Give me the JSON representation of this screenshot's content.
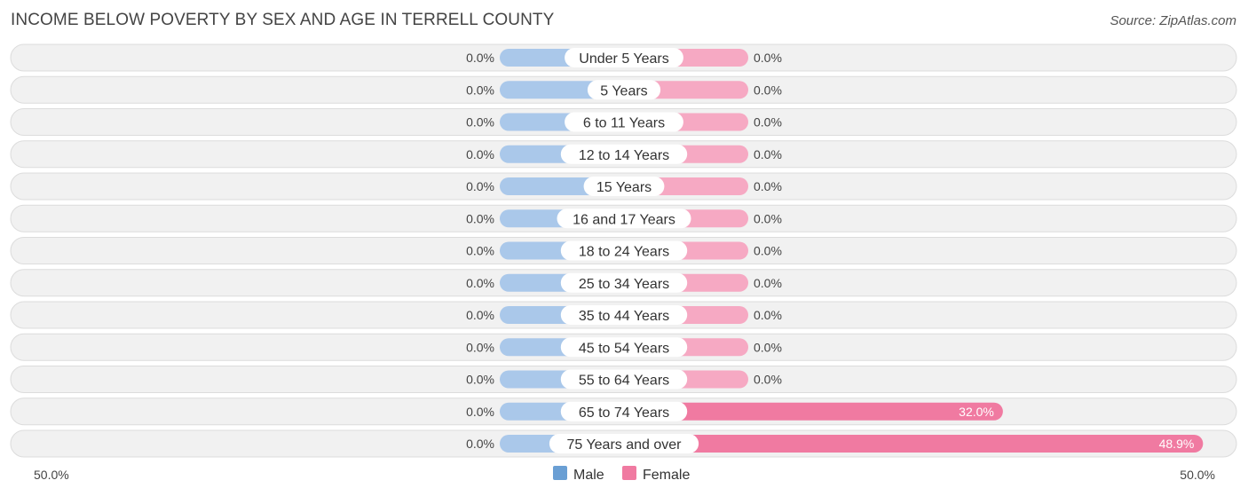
{
  "title": "INCOME BELOW POVERTY BY SEX AND AGE IN TERRELL COUNTY",
  "source": "Source: ZipAtlas.com",
  "colors": {
    "male_light": "#aac8ea",
    "female_light": "#f6a9c3",
    "male": "#6a9fd4",
    "female": "#f07aa1"
  },
  "chart_data": {
    "type": "bar",
    "orientation": "horizontal-diverging",
    "categories": [
      "Under 5 Years",
      "5 Years",
      "6 to 11 Years",
      "12 to 14 Years",
      "15 Years",
      "16 and 17 Years",
      "18 to 24 Years",
      "25 to 34 Years",
      "35 to 44 Years",
      "45 to 54 Years",
      "55 to 64 Years",
      "65 to 74 Years",
      "75 Years and over"
    ],
    "series": [
      {
        "name": "Male",
        "values": [
          0.0,
          0.0,
          0.0,
          0.0,
          0.0,
          0.0,
          0.0,
          0.0,
          0.0,
          0.0,
          0.0,
          0.0,
          0.0
        ],
        "labels": [
          "0.0%",
          "0.0%",
          "0.0%",
          "0.0%",
          "0.0%",
          "0.0%",
          "0.0%",
          "0.0%",
          "0.0%",
          "0.0%",
          "0.0%",
          "0.0%",
          "0.0%"
        ]
      },
      {
        "name": "Female",
        "values": [
          0.0,
          0.0,
          0.0,
          0.0,
          0.0,
          0.0,
          0.0,
          0.0,
          0.0,
          0.0,
          0.0,
          32.0,
          48.9
        ],
        "labels": [
          "0.0%",
          "0.0%",
          "0.0%",
          "0.0%",
          "0.0%",
          "0.0%",
          "0.0%",
          "0.0%",
          "0.0%",
          "0.0%",
          "0.0%",
          "32.0%",
          "48.9%"
        ]
      }
    ],
    "xlim": [
      -50,
      50
    ],
    "axis_labels": {
      "left": "50.0%",
      "right": "50.0%"
    },
    "legend": {
      "placement": "bottom-center",
      "items": [
        "Male",
        "Female"
      ]
    },
    "unit": "%"
  }
}
